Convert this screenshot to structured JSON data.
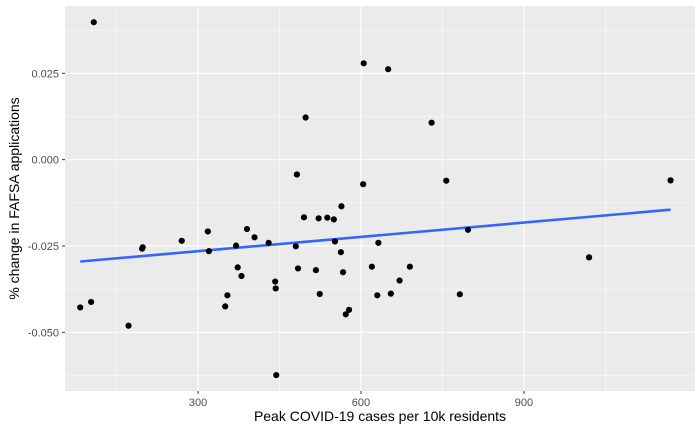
{
  "chart_data": {
    "type": "scatter",
    "title": "",
    "xlabel": "Peak COVID-19 cases per 10k residents",
    "ylabel": "% change in FAFSA applications",
    "xlim": [
      55,
      1215
    ],
    "ylim": [
      -0.067,
      0.0445
    ],
    "x_ticks": [
      300,
      600,
      900
    ],
    "x_tick_labels": [
      "300",
      "600",
      "900"
    ],
    "y_ticks": [
      0.025,
      0.0,
      -0.025,
      -0.05
    ],
    "y_tick_labels": [
      "0.025",
      "0.000",
      "-0.025",
      "-0.050"
    ],
    "grid": true,
    "points": [
      {
        "x": 108,
        "y": 0.0398
      },
      {
        "x": 83,
        "y": -0.0428
      },
      {
        "x": 103,
        "y": -0.0412
      },
      {
        "x": 172,
        "y": -0.0481
      },
      {
        "x": 197,
        "y": -0.0258
      },
      {
        "x": 198,
        "y": -0.0254
      },
      {
        "x": 270,
        "y": -0.0235
      },
      {
        "x": 318,
        "y": -0.0208
      },
      {
        "x": 320,
        "y": -0.0265
      },
      {
        "x": 350,
        "y": -0.0425
      },
      {
        "x": 354,
        "y": -0.0393
      },
      {
        "x": 370,
        "y": -0.0249
      },
      {
        "x": 373,
        "y": -0.0312
      },
      {
        "x": 380,
        "y": -0.0337
      },
      {
        "x": 390,
        "y": -0.0201
      },
      {
        "x": 404,
        "y": -0.0225
      },
      {
        "x": 430,
        "y": -0.0241
      },
      {
        "x": 442,
        "y": -0.0353
      },
      {
        "x": 443,
        "y": -0.0373
      },
      {
        "x": 444,
        "y": -0.0624
      },
      {
        "x": 480,
        "y": -0.0251
      },
      {
        "x": 482,
        "y": -0.0043
      },
      {
        "x": 484,
        "y": -0.0315
      },
      {
        "x": 495,
        "y": -0.0167
      },
      {
        "x": 498,
        "y": 0.0122
      },
      {
        "x": 517,
        "y": -0.032
      },
      {
        "x": 522,
        "y": -0.017
      },
      {
        "x": 524,
        "y": -0.0389
      },
      {
        "x": 538,
        "y": -0.0168
      },
      {
        "x": 550,
        "y": -0.0173
      },
      {
        "x": 552,
        "y": -0.0237
      },
      {
        "x": 563,
        "y": -0.0268
      },
      {
        "x": 564,
        "y": -0.0135
      },
      {
        "x": 567,
        "y": -0.0326
      },
      {
        "x": 572,
        "y": -0.0448
      },
      {
        "x": 578,
        "y": -0.0435
      },
      {
        "x": 604,
        "y": -0.0071
      },
      {
        "x": 605,
        "y": 0.0279
      },
      {
        "x": 620,
        "y": -0.031
      },
      {
        "x": 630,
        "y": -0.0393
      },
      {
        "x": 632,
        "y": -0.0241
      },
      {
        "x": 650,
        "y": 0.0262
      },
      {
        "x": 655,
        "y": -0.0388
      },
      {
        "x": 671,
        "y": -0.035
      },
      {
        "x": 690,
        "y": -0.031
      },
      {
        "x": 730,
        "y": 0.0107
      },
      {
        "x": 757,
        "y": -0.0061
      },
      {
        "x": 782,
        "y": -0.039
      },
      {
        "x": 797,
        "y": -0.0203
      },
      {
        "x": 1020,
        "y": -0.0283
      },
      {
        "x": 1170,
        "y": -0.006
      }
    ],
    "trend_line": {
      "type": "linear",
      "x": [
        83,
        1170
      ],
      "y": [
        -0.0295,
        -0.0145
      ],
      "color": "#3366FF"
    },
    "colors": {
      "panel_background": "#EBEBEB",
      "grid": "#FFFFFF",
      "points": "#000000"
    }
  }
}
